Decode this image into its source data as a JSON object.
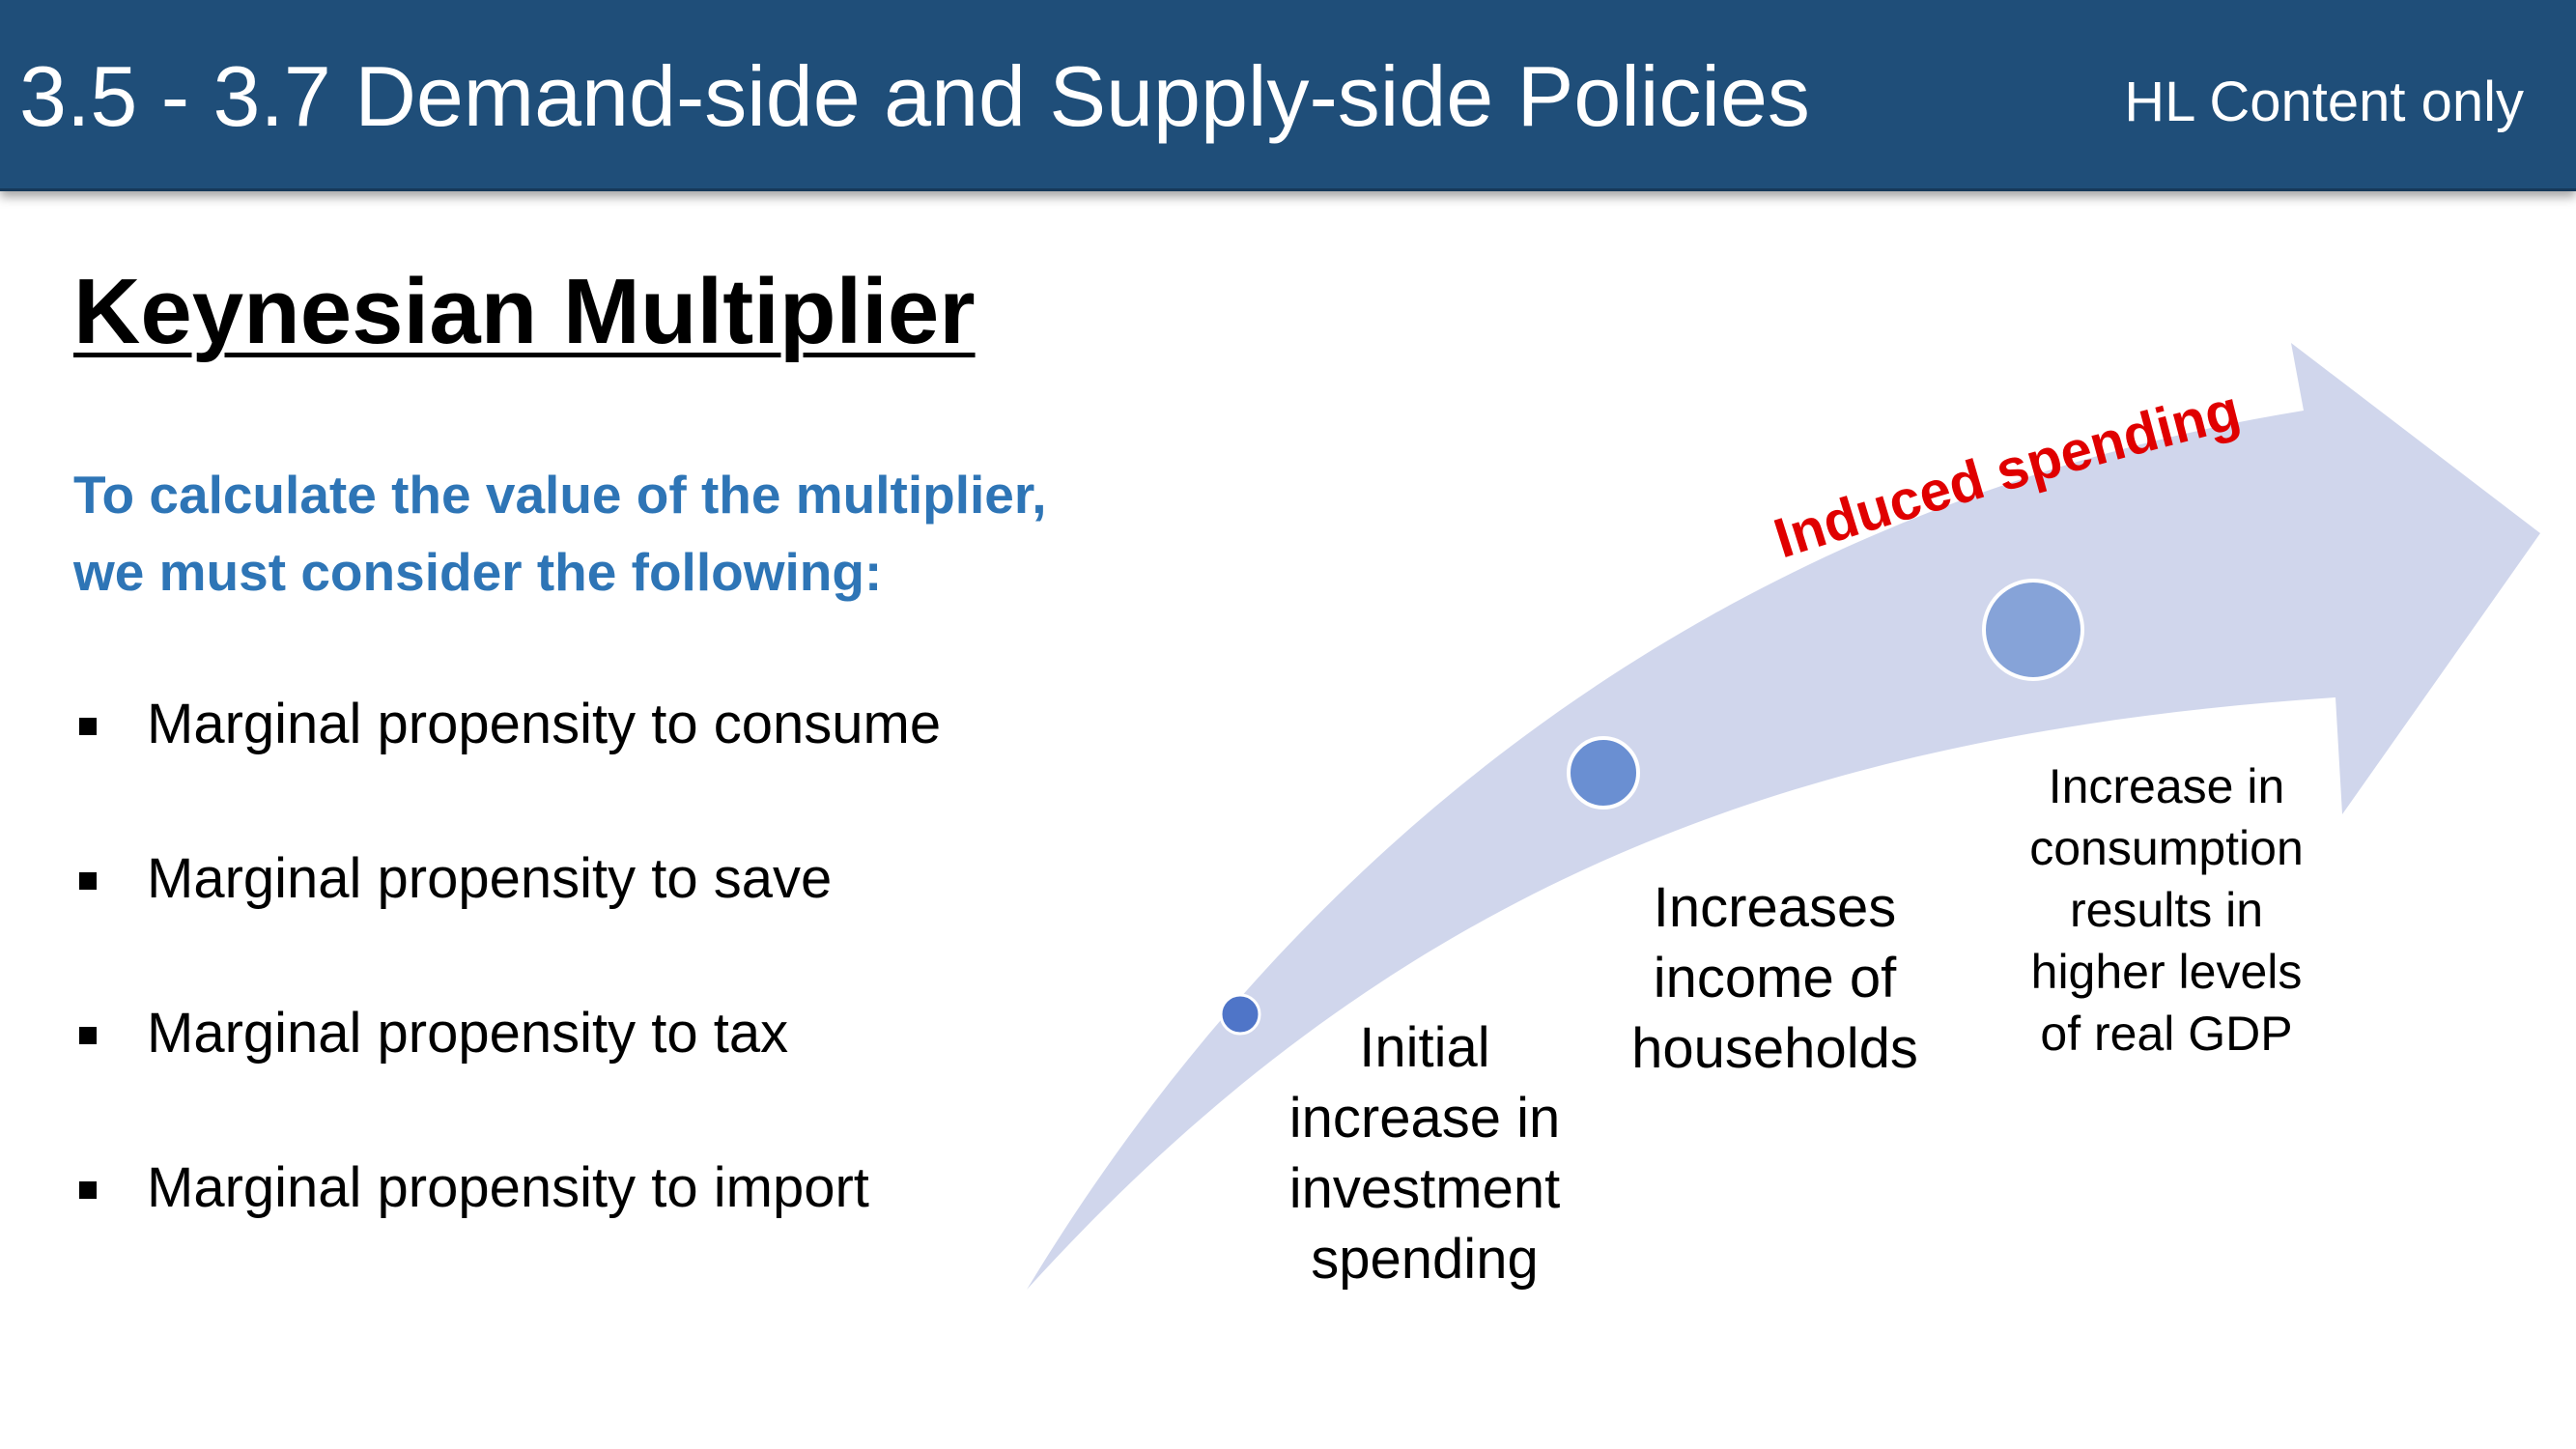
{
  "header": {
    "title": "3.5 - 3.7 Demand-side and Supply-side Policies",
    "tag": "HL Content only"
  },
  "section_title": "Keynesian Multiplier",
  "intro": {
    "line1": "To calculate the value of the multiplier,",
    "line2": "we must consider the following:"
  },
  "bullets": [
    {
      "label": "Marginal propensity to consume"
    },
    {
      "label": "Marginal propensity to save"
    },
    {
      "label": "Marginal propensity to tax"
    },
    {
      "label": "Marginal propensity to import"
    }
  ],
  "diagram": {
    "arrow_caption": "Induced spending",
    "steps": [
      {
        "lines": [
          "Initial",
          "increase in",
          "investment",
          "spending"
        ]
      },
      {
        "lines": [
          "Increases",
          "income of",
          "households"
        ]
      },
      {
        "lines": [
          "Increase in",
          "consumption",
          "results in",
          "higher levels",
          "of real GDP"
        ]
      }
    ]
  },
  "colors": {
    "header_bg": "#1f4e79",
    "intro_text": "#2e75b6",
    "arrow_fill": "#d0d6ec",
    "dot_fill": "#4f75c8",
    "caption": "#e00000"
  }
}
